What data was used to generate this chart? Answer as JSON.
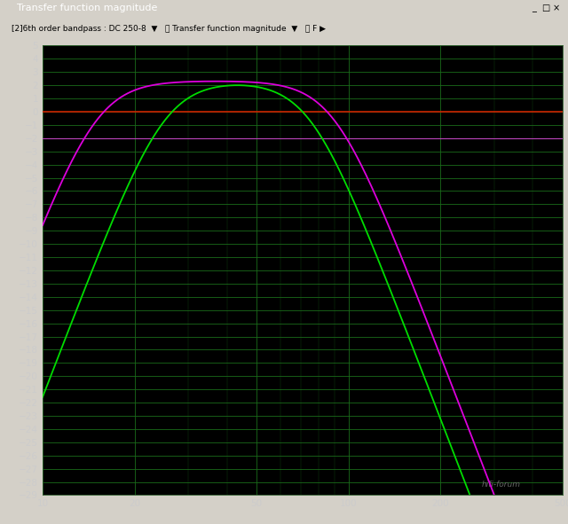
{
  "title": "Transfer function magnitude",
  "window_bg": "#d4d0c8",
  "titlebar_bg": "#000080",
  "titlebar_fg": "#ffffff",
  "toolbar_bg": "#d4d0c8",
  "plot_bg_color": "#000000",
  "grid_color_major": "#1a6b1a",
  "grid_color_minor": "#0d3d0d",
  "xmin": 10,
  "xmax": 500,
  "ymin": -29,
  "ymax": 5,
  "xticks": [
    10,
    20,
    50,
    100,
    200,
    500
  ],
  "yticks": [
    5,
    4,
    3,
    2,
    1,
    0,
    -1,
    -2,
    -3,
    -4,
    -5,
    -6,
    -7,
    -8,
    -9,
    -10,
    -11,
    -12,
    -13,
    -14,
    -15,
    -16,
    -17,
    -18,
    -19,
    -20,
    -21,
    -22,
    -23,
    -24,
    -25,
    -26,
    -27,
    -28,
    -29
  ],
  "red_line_y": 0,
  "ref_line_y": -2,
  "red_line_color": "#cc2200",
  "ref_line_color": "#bb44bb",
  "curve_green_color": "#00dd00",
  "curve_magenta_color": "#dd00dd",
  "curve_linewidth": 1.3,
  "tick_color": "#cccccc",
  "tick_fontsize": 7.5,
  "watermark": "hifi-forum"
}
